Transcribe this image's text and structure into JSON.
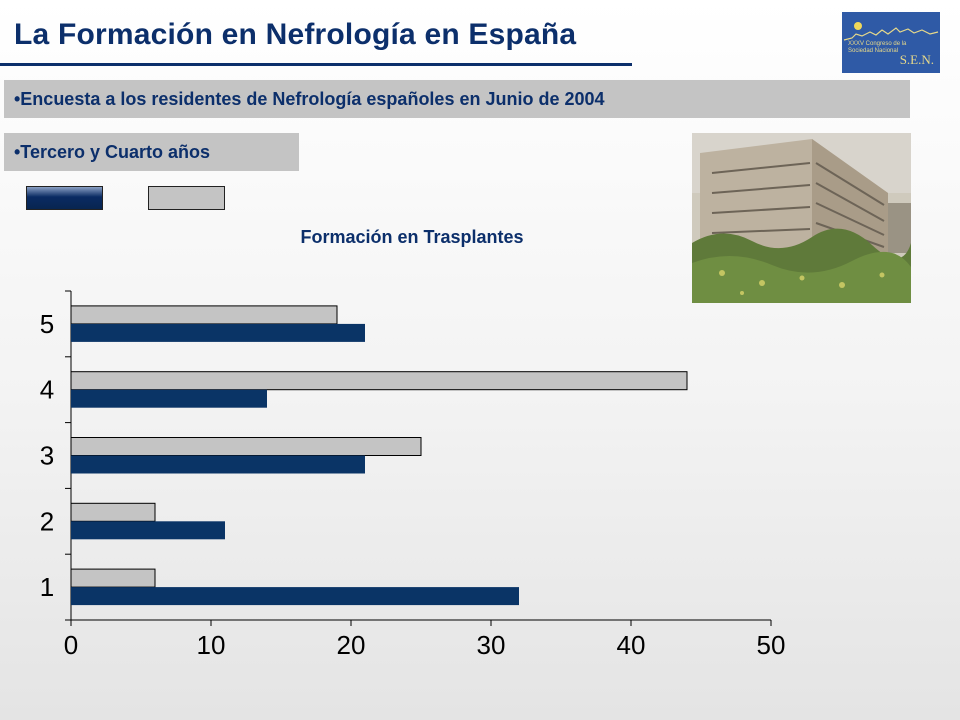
{
  "header": {
    "title": "La Formación en Nefrología en España"
  },
  "logo": {
    "text_line1": "XXXV Congreso de la",
    "text_line2": "Sociedad Nacional",
    "sen": "S.E.N."
  },
  "bullets": [
    "•Encuesta a los residentes de Nefrología españoles en Junio de 2004",
    "•Tercero y Cuarto años"
  ],
  "colors": {
    "title": "#0c2f6b",
    "series_dark": "#0a3466",
    "series_light": "#c4c4c4",
    "band": "#c4c4c4"
  },
  "chart_data": {
    "type": "bar",
    "orientation": "horizontal",
    "title": "Formación en Trasplantes",
    "categories": [
      "1",
      "2",
      "3",
      "4",
      "5"
    ],
    "series": [
      {
        "values": [
          32,
          11,
          21,
          14,
          21
        ],
        "color": "#0a3466"
      },
      {
        "values": [
          6,
          6,
          25,
          44,
          19
        ],
        "color": "#c4c4c4"
      }
    ],
    "xlim": [
      0,
      50
    ],
    "xticks": [
      "0",
      "10",
      "20",
      "30",
      "40",
      "50"
    ],
    "legend": "top-left, unlabeled swatches",
    "grid": false
  }
}
